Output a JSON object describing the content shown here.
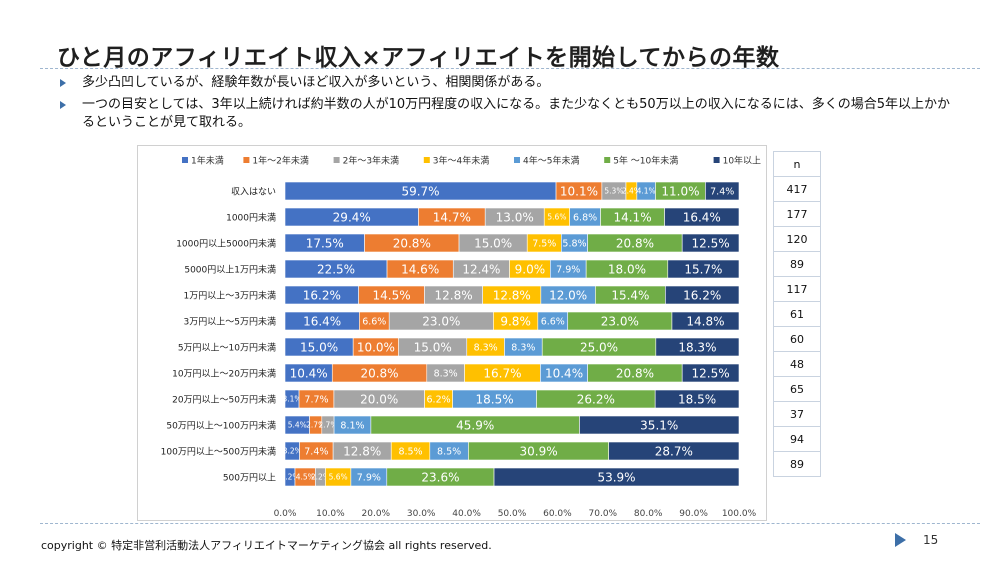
{
  "page": {
    "title": "ひと月のアフィリエイト収入×アフィリエイトを開始してからの年数",
    "bullets": [
      "多少凸凹しているが、経験年数が長いほど収入が多いという、相関関係がある。",
      "一つの目安としては、3年以上続ければ約半数の人が10万円程度の収入になる。また少なくとも50万以上の収入になるには、多くの場合5年以上かかるということが見て取れる。"
    ],
    "footer": "copyright © 特定非営利活動法人アフィリエイトマーケティング協会 all rights reserved.",
    "page_number": "15",
    "n_header": "n",
    "n_values": [
      "417",
      "177",
      "120",
      "89",
      "117",
      "61",
      "60",
      "48",
      "65",
      "37",
      "94",
      "89"
    ]
  },
  "chart_data": {
    "type": "bar",
    "orientation": "horizontal",
    "stacked": "percent",
    "categories": [
      "収入はない",
      "1000円未満",
      "1000円以上5000円未満",
      "5000円以上1万円未満",
      "1万円以上～3万円未満",
      "3万円以上～5万円未満",
      "5万円以上～10万円未満",
      "10万円以上～20万円未満",
      "20万円以上～50万円未満",
      "50万円以上～100万円未満",
      "100万円以上～500万円未満",
      "500万円以上"
    ],
    "series": [
      {
        "name": "1年未満",
        "color": "#4472c4",
        "values": [
          59.7,
          29.4,
          17.5,
          22.5,
          16.2,
          16.4,
          15.0,
          10.4,
          3.1,
          5.4,
          3.2,
          2.2
        ]
      },
      {
        "name": "1年～2年未満",
        "color": "#ed7d31",
        "values": [
          10.1,
          14.7,
          20.8,
          14.6,
          14.5,
          6.6,
          10.0,
          20.8,
          7.7,
          2.7,
          7.4,
          4.5
        ]
      },
      {
        "name": "2年～3年未満",
        "color": "#a5a5a5",
        "values": [
          5.3,
          13.0,
          15.0,
          12.4,
          12.8,
          23.0,
          15.0,
          8.3,
          20.0,
          2.7,
          12.8,
          2.2
        ]
      },
      {
        "name": "3年～4年未満",
        "color": "#ffc000",
        "values": [
          2.4,
          5.6,
          7.5,
          9.0,
          12.8,
          9.8,
          8.3,
          16.7,
          6.2,
          0,
          8.5,
          5.6
        ]
      },
      {
        "name": "4年～5年未満",
        "color": "#5b9bd5",
        "values": [
          4.1,
          6.8,
          5.8,
          7.9,
          12.0,
          6.6,
          8.3,
          10.4,
          18.5,
          8.1,
          8.5,
          7.9
        ]
      },
      {
        "name": "5年 ～10年未満",
        "color": "#70ad47",
        "values": [
          11.0,
          14.1,
          20.8,
          18.0,
          15.4,
          23.0,
          25.0,
          20.8,
          26.2,
          45.9,
          30.9,
          23.6
        ]
      },
      {
        "name": "10年以上",
        "color": "#264478",
        "values": [
          7.4,
          16.4,
          12.5,
          15.7,
          16.2,
          14.8,
          18.3,
          12.5,
          18.5,
          35.1,
          28.7,
          53.9
        ]
      }
    ],
    "data_labels": [
      [
        "59.7%",
        "10.1%",
        "5.3%",
        "2.4%",
        "4.1%",
        "11.0%",
        "7.4%"
      ],
      [
        "29.4%",
        "14.7%",
        "13.0%",
        "5.6%",
        "6.8%",
        "14.1%",
        "16.4%"
      ],
      [
        "17.5%",
        "20.8%",
        "15.0%",
        "7.5%",
        "5.8%",
        "20.8%",
        "12.5%"
      ],
      [
        "22.5%",
        "14.6%",
        "12.4%",
        "9.0%",
        "7.9%",
        "18.0%",
        "15.7%"
      ],
      [
        "16.2%",
        "14.5%",
        "12.8%",
        "12.8%",
        "12.0%",
        "15.4%",
        "16.2%"
      ],
      [
        "16.4%",
        "6.6%",
        "23.0%",
        "9.8%",
        "6.6%",
        "23.0%",
        "14.8%"
      ],
      [
        "15.0%",
        "10.0%",
        "15.0%",
        "8.3%",
        "8.3%",
        "25.0%",
        "18.3%"
      ],
      [
        "10.4%",
        "20.8%",
        "8.3%",
        "16.7%",
        "10.4%",
        "20.8%",
        "12.5%"
      ],
      [
        "3.1%",
        "7.7%",
        "20.0%",
        "6.2%",
        "18.5%",
        "26.2%",
        "18.5%"
      ],
      [
        "5.4%",
        "2.7%",
        "2.7%",
        "",
        "8.1%",
        "45.9%",
        "35.1%"
      ],
      [
        "3.2%",
        "7.4%",
        "12.8%",
        "8.5%",
        "8.5%",
        "30.9%",
        "28.7%"
      ],
      [
        "2.2%",
        "4.5%",
        "2.2%",
        "5.6%",
        "7.9%",
        "23.6%",
        "53.9%"
      ]
    ],
    "x_ticks": [
      "0.0%",
      "10.0%",
      "20.0%",
      "30.0%",
      "40.0%",
      "50.0%",
      "60.0%",
      "70.0%",
      "80.0%",
      "90.0%",
      "100.0%"
    ],
    "xlim": [
      0,
      100
    ],
    "legend_position": "top",
    "grid": false
  }
}
